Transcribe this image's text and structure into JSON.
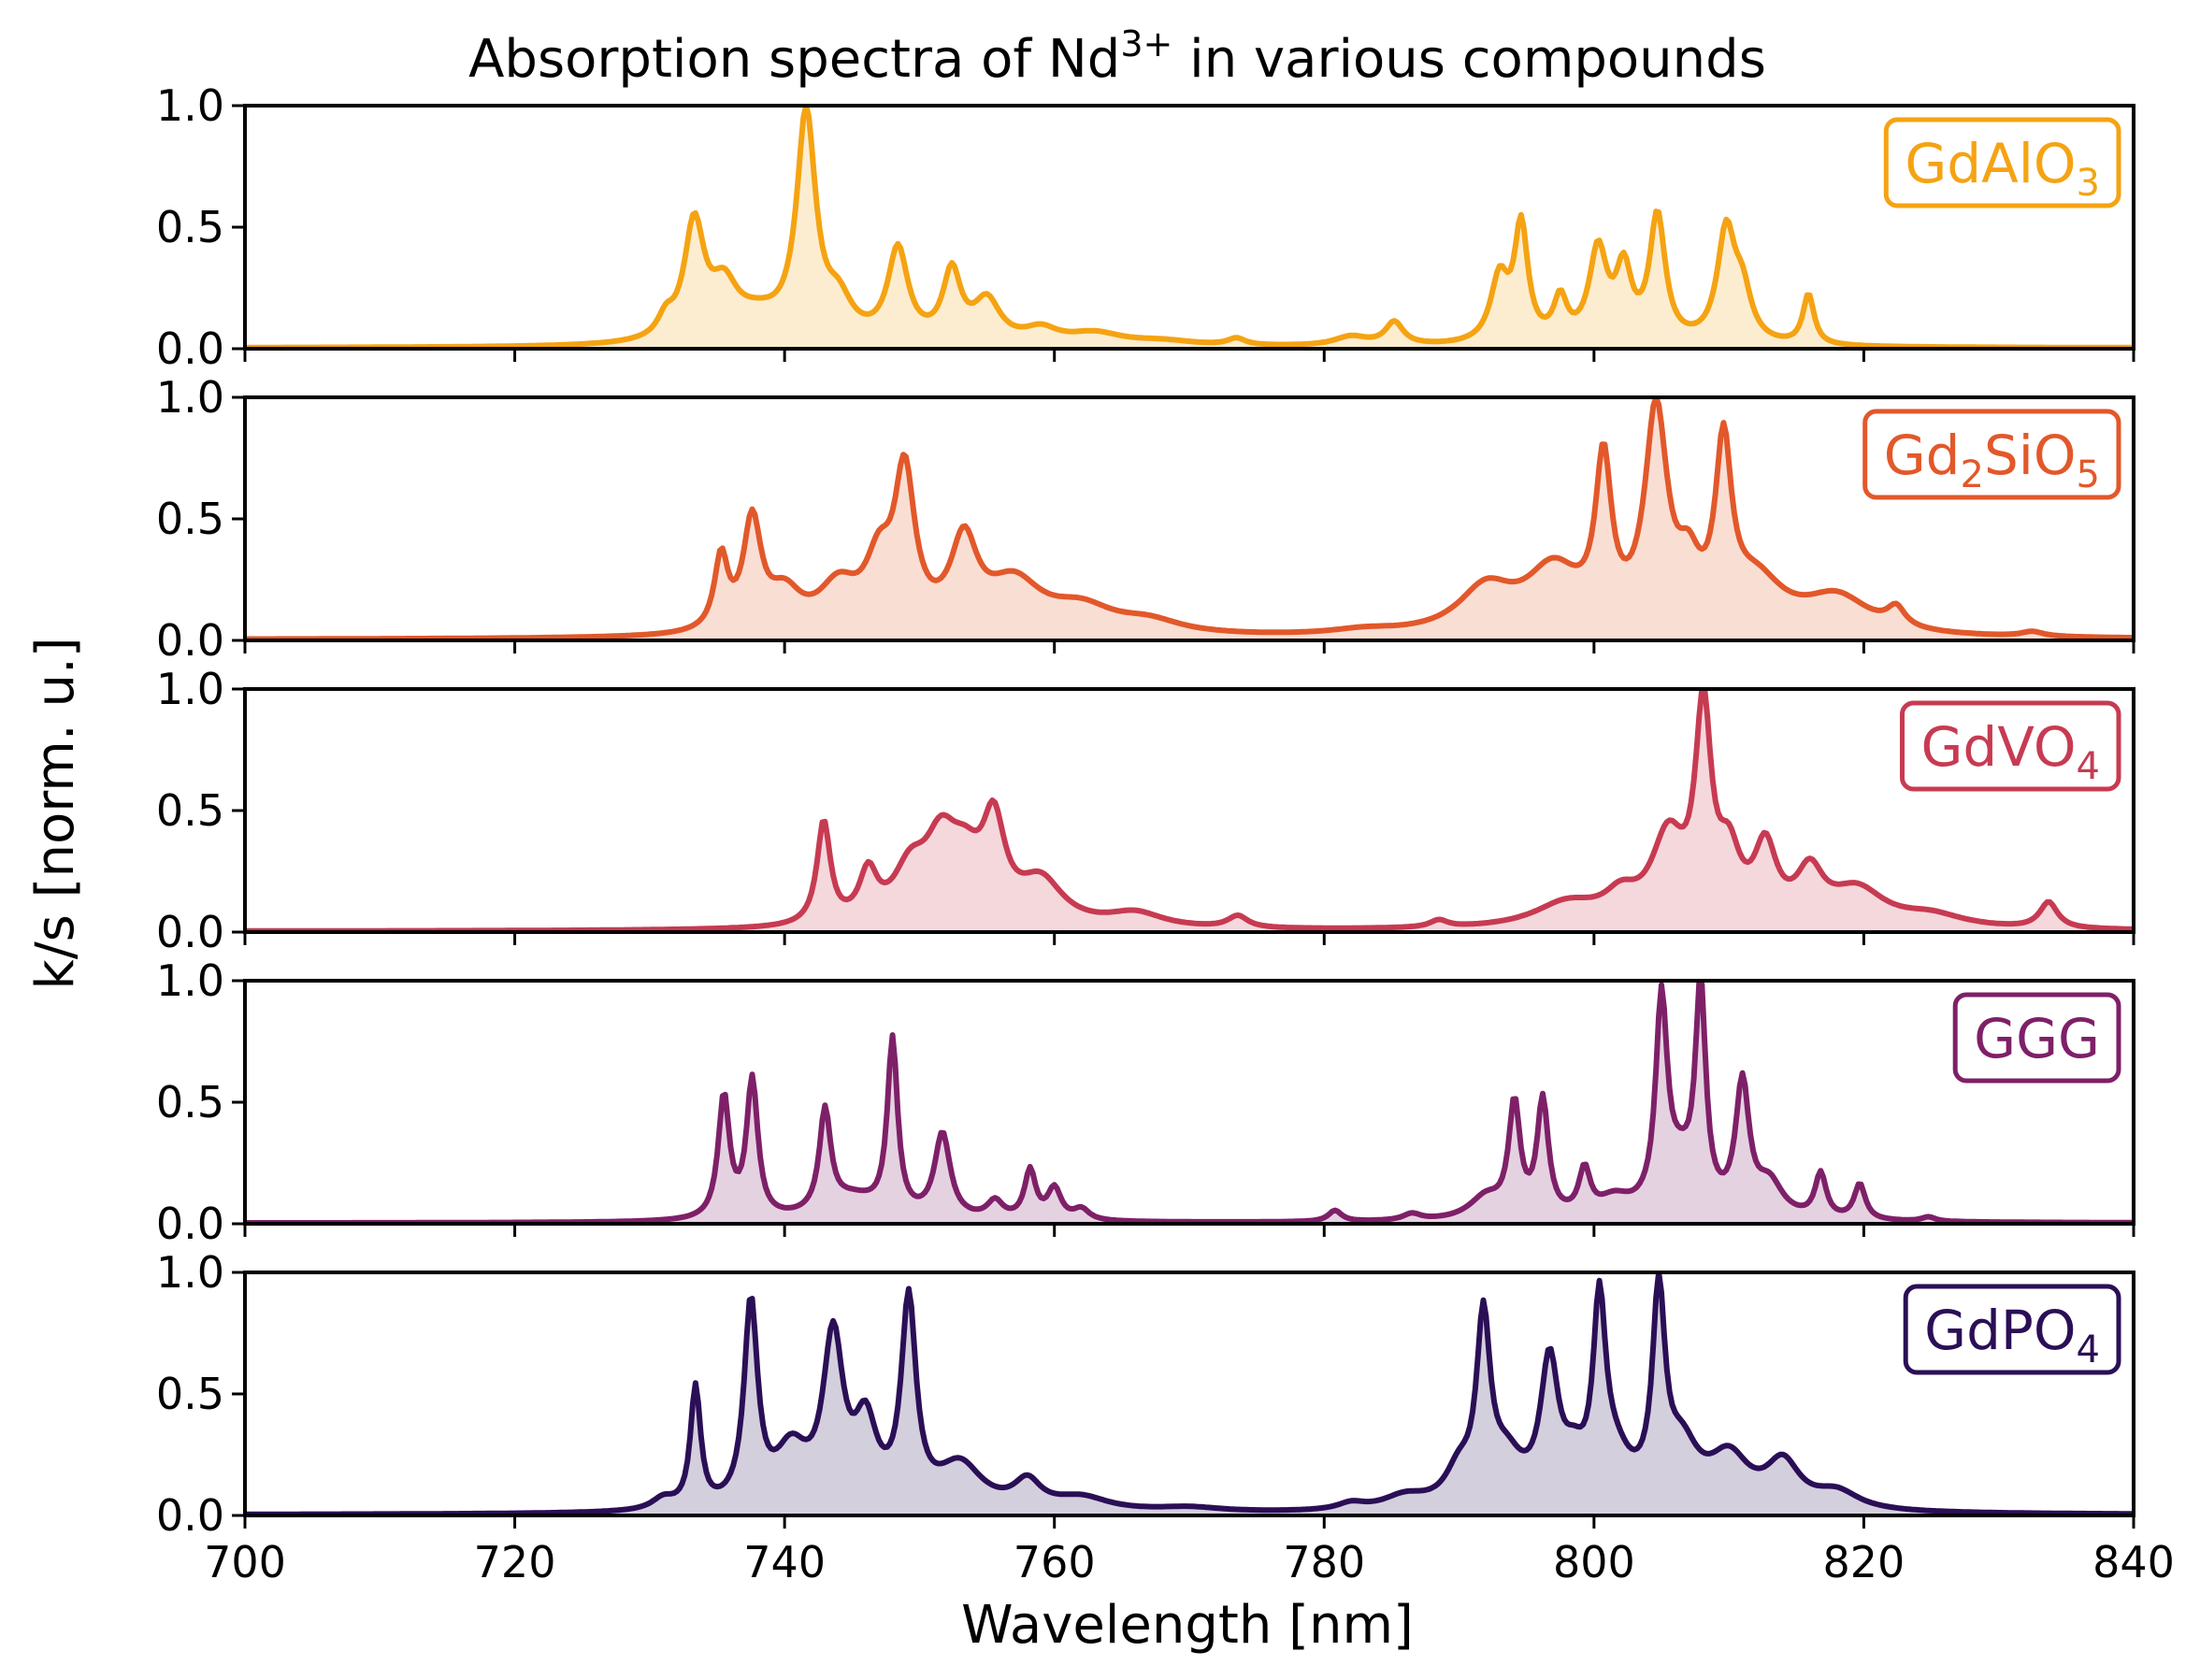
{
  "chart_data": {
    "type": "area",
    "title": "Absorption spectra of Nd",
    "title_superscript": "3+",
    "title_suffix": " in various compounds",
    "xlabel": "Wavelength [nm]",
    "ylabel": "k/s [norm. u.]",
    "xlim": [
      700,
      840
    ],
    "ylim": [
      0,
      1
    ],
    "x_ticks": [
      "700",
      "720",
      "740",
      "760",
      "780",
      "800",
      "820",
      "840"
    ],
    "y_ticks": [
      "0.0",
      "0.5",
      "1.0"
    ],
    "legend_position": "top-right",
    "panels": [
      {
        "name": "GdAlO3",
        "label_parts": [
          {
            "t": "GdAlO"
          },
          {
            "t": "3",
            "sub": true
          }
        ],
        "color": "#F5A312",
        "peaks": [
          [
            731.2,
            0.08,
            0.7
          ],
          [
            733.3,
            0.5,
            0.9
          ],
          [
            735.5,
            0.2,
            1.2
          ],
          [
            738,
            0.1,
            2.5
          ],
          [
            741.6,
            0.97,
            0.85
          ],
          [
            744,
            0.15,
            1.2
          ],
          [
            748.4,
            0.4,
            0.9
          ],
          [
            752.4,
            0.3,
            0.8
          ],
          [
            755,
            0.18,
            1.2
          ],
          [
            759,
            0.06,
            1.5
          ],
          [
            763,
            0.05,
            2.5
          ],
          [
            773.5,
            0.03,
            0.8
          ],
          [
            782,
            0.04,
            1.5
          ],
          [
            785.2,
            0.1,
            0.8
          ],
          [
            793,
            0.28,
            0.8
          ],
          [
            794.6,
            0.5,
            0.6
          ],
          [
            797.5,
            0.18,
            0.6
          ],
          [
            800.3,
            0.4,
            0.8
          ],
          [
            802.2,
            0.3,
            0.7
          ],
          [
            804.7,
            0.55,
            0.7
          ],
          [
            809.8,
            0.48,
            0.8
          ],
          [
            811,
            0.2,
            0.8
          ],
          [
            815.9,
            0.22,
            0.5
          ],
          [
            768,
            0.02,
            3
          ]
        ]
      },
      {
        "name": "Gd2SiO5",
        "label_parts": [
          {
            "t": "Gd"
          },
          {
            "t": "2",
            "sub": true
          },
          {
            "t": "SiO"
          },
          {
            "t": "5",
            "sub": true
          }
        ],
        "color": "#E2582A",
        "peaks": [
          [
            735.3,
            0.3,
            0.6
          ],
          [
            737.6,
            0.45,
            0.8
          ],
          [
            740,
            0.15,
            1.5
          ],
          [
            744,
            0.18,
            1.8
          ],
          [
            747,
            0.25,
            1.2
          ],
          [
            748.9,
            0.62,
            0.9
          ],
          [
            753.3,
            0.35,
            1.2
          ],
          [
            757,
            0.2,
            2.5
          ],
          [
            762,
            0.1,
            3
          ],
          [
            767,
            0.05,
            3
          ],
          [
            783,
            0.02,
            3
          ],
          [
            792,
            0.18,
            2.5
          ],
          [
            797,
            0.25,
            2.5
          ],
          [
            800.7,
            0.65,
            0.7
          ],
          [
            804.6,
            0.88,
            1.0
          ],
          [
            807,
            0.2,
            1.0
          ],
          [
            809.6,
            0.7,
            0.7
          ],
          [
            812,
            0.2,
            2.5
          ],
          [
            818,
            0.15,
            3
          ],
          [
            822.4,
            0.08,
            0.8
          ],
          [
            832.5,
            0.02,
            1
          ]
        ]
      },
      {
        "name": "GdVO4",
        "label_parts": [
          {
            "t": "GdVO"
          },
          {
            "t": "4",
            "sub": true
          }
        ],
        "color": "#C73B52",
        "peaks": [
          [
            742.9,
            0.43,
            0.6
          ],
          [
            746.2,
            0.2,
            0.8
          ],
          [
            749.3,
            0.2,
            1.5
          ],
          [
            751.6,
            0.3,
            1.5
          ],
          [
            755.5,
            0.38,
            1.0
          ],
          [
            753.4,
            0.2,
            1.5
          ],
          [
            759,
            0.18,
            2
          ],
          [
            766,
            0.06,
            2.5
          ],
          [
            773.6,
            0.05,
            0.9
          ],
          [
            788.5,
            0.03,
            0.8
          ],
          [
            798,
            0.1,
            3
          ],
          [
            802,
            0.1,
            1.5
          ],
          [
            805.5,
            0.35,
            1.5
          ],
          [
            808.1,
            0.85,
            0.7
          ],
          [
            810,
            0.25,
            1.0
          ],
          [
            812.7,
            0.3,
            1.0
          ],
          [
            816,
            0.2,
            1.2
          ],
          [
            819.5,
            0.15,
            2.5
          ],
          [
            825,
            0.05,
            3
          ],
          [
            833.7,
            0.11,
            0.8
          ]
        ]
      },
      {
        "name": "GGG",
        "label_parts": [
          {
            "t": "GGG"
          }
        ],
        "color": "#7E2068",
        "peaks": [
          [
            735.5,
            0.55,
            0.5
          ],
          [
            737.6,
            0.62,
            0.5
          ],
          [
            743,
            0.45,
            0.5
          ],
          [
            748,
            0.78,
            0.45
          ],
          [
            751.7,
            0.38,
            0.7
          ],
          [
            745,
            0.1,
            2.5
          ],
          [
            755.6,
            0.08,
            0.7
          ],
          [
            758.2,
            0.22,
            0.5
          ],
          [
            760,
            0.14,
            0.6
          ],
          [
            762,
            0.05,
            0.7
          ],
          [
            780.8,
            0.05,
            0.6
          ],
          [
            786.5,
            0.03,
            0.8
          ],
          [
            794.1,
            0.5,
            0.5
          ],
          [
            796.2,
            0.52,
            0.5
          ],
          [
            799.3,
            0.2,
            0.5
          ],
          [
            792,
            0.1,
            1.5
          ],
          [
            801.5,
            0.08,
            1.5
          ],
          [
            805,
            0.9,
            0.5
          ],
          [
            807.9,
            0.95,
            0.45
          ],
          [
            806.4,
            0.22,
            1.5
          ],
          [
            811,
            0.58,
            0.6
          ],
          [
            813,
            0.15,
            1.2
          ],
          [
            816.8,
            0.2,
            0.5
          ],
          [
            819.7,
            0.16,
            0.5
          ],
          [
            824.8,
            0.02,
            0.6
          ]
        ]
      },
      {
        "name": "GdPO4",
        "label_parts": [
          {
            "t": "GdPO"
          },
          {
            "t": "4",
            "sub": true
          }
        ],
        "color": "#2A0F56",
        "peaks": [
          [
            731,
            0.05,
            1.0
          ],
          [
            733.4,
            0.55,
            0.45
          ],
          [
            737.5,
            0.92,
            0.6
          ],
          [
            740.5,
            0.25,
            1.5
          ],
          [
            743.6,
            0.75,
            0.9
          ],
          [
            746,
            0.35,
            1.0
          ],
          [
            749.2,
            0.92,
            0.65
          ],
          [
            753,
            0.2,
            2.0
          ],
          [
            758,
            0.12,
            1.2
          ],
          [
            762,
            0.06,
            2.5
          ],
          [
            770,
            0.02,
            3
          ],
          [
            782,
            0.03,
            1.2
          ],
          [
            786,
            0.06,
            2
          ],
          [
            790,
            0.15,
            1.2
          ],
          [
            791.8,
            0.8,
            0.6
          ],
          [
            793.5,
            0.2,
            1.5
          ],
          [
            796.7,
            0.62,
            0.8
          ],
          [
            798.5,
            0.15,
            1.0
          ],
          [
            800.4,
            0.82,
            0.55
          ],
          [
            801.5,
            0.2,
            1.5
          ],
          [
            804.8,
            0.9,
            0.55
          ],
          [
            806.5,
            0.25,
            1.5
          ],
          [
            810,
            0.22,
            1.8
          ],
          [
            814,
            0.2,
            1.5
          ],
          [
            818,
            0.08,
            2
          ]
        ]
      }
    ]
  }
}
